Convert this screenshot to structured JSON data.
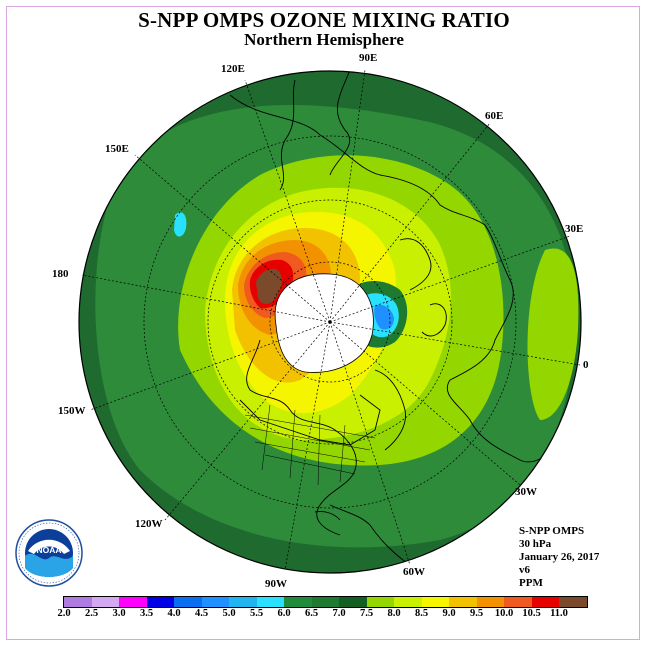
{
  "header": {
    "title": "S-NPP OMPS OZONE MIXING RATIO",
    "subtitle": "Northern Hemisphere"
  },
  "map": {
    "projection": "polar-stereographic-north",
    "longitude_labels": [
      {
        "text": "90E"
      },
      {
        "text": "60E"
      },
      {
        "text": "30E"
      },
      {
        "text": "0"
      },
      {
        "text": "30W"
      },
      {
        "text": "60W"
      },
      {
        "text": "90W"
      },
      {
        "text": "120W"
      },
      {
        "text": "150W"
      },
      {
        "text": "180"
      },
      {
        "text": "150E"
      },
      {
        "text": "120E"
      }
    ],
    "colors": {
      "outer_dark": "#1e6a2f",
      "green_mid": "#2e8b3a",
      "green_light": "#94d600",
      "yellow_green": "#c8f000",
      "yellow": "#f5f500",
      "gold": "#f2c200",
      "orange": "#f39200",
      "red_orange": "#f05a1e",
      "red": "#e60000",
      "brown": "#7a4a2a",
      "no_data": "#ffffff"
    }
  },
  "info": {
    "lines": [
      "S-NPP OMPS",
      "30 hPa",
      "January 26, 2017",
      "v6",
      "PPM"
    ]
  },
  "logo": {
    "text": "NOAA"
  },
  "colorbar": {
    "ticks": [
      "2.0",
      "2.5",
      "3.0",
      "3.5",
      "4.0",
      "4.5",
      "5.0",
      "5.5",
      "6.0",
      "6.5",
      "7.0",
      "7.5",
      "8.0",
      "8.5",
      "9.0",
      "9.5",
      "10.0",
      "10.5",
      "11.0"
    ],
    "colors": [
      "#b07be0",
      "#d4a8f0",
      "#ff00ff",
      "#0000e6",
      "#0a6ef0",
      "#1e90ff",
      "#22b4f0",
      "#28e1ff",
      "#1e8c3a",
      "#1e7a30",
      "#145f22",
      "#94d600",
      "#c8f000",
      "#f5f500",
      "#f2c200",
      "#f39200",
      "#f05a1e",
      "#e60000",
      "#7a4a2a"
    ]
  }
}
